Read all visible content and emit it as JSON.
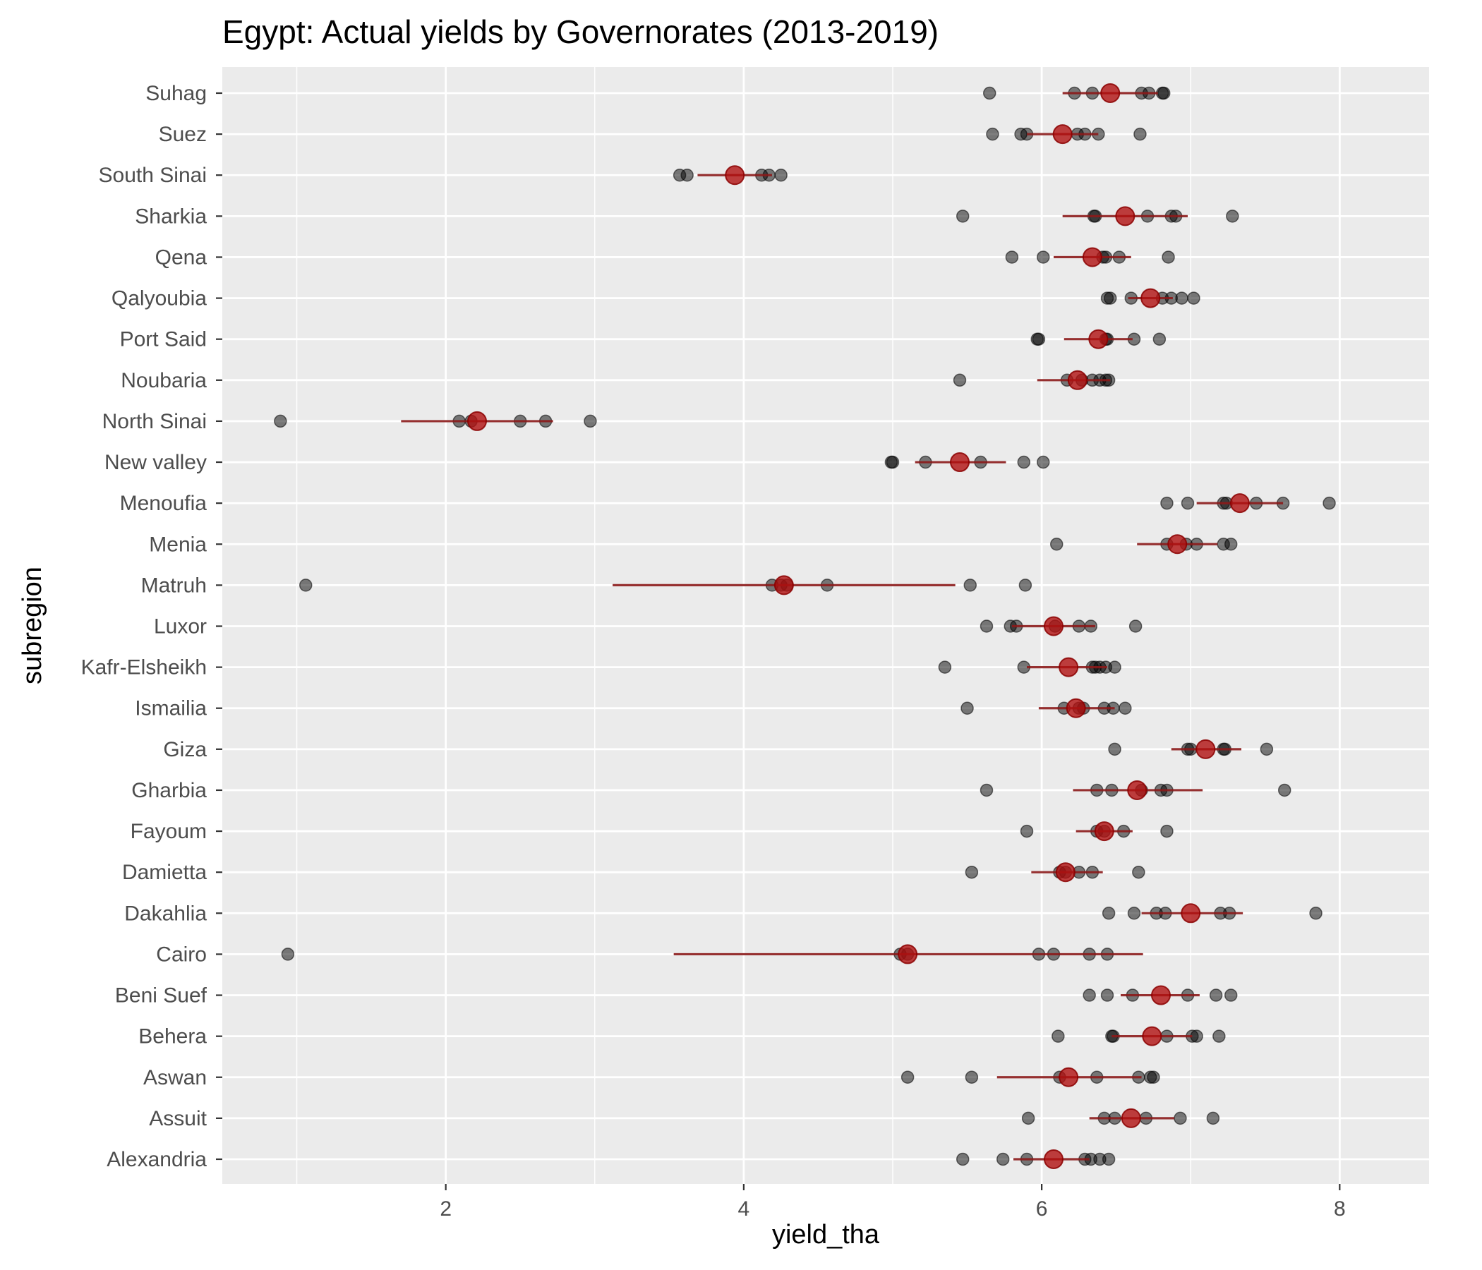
{
  "chart_data": {
    "type": "scatter",
    "title": "Egypt: Actual yields by Governorates (2013-2019)",
    "xlabel": "yield_tha",
    "ylabel": "subregion",
    "xlim": [
      0.5,
      8.6
    ],
    "xticks": [
      2,
      4,
      6,
      8
    ],
    "grid": true,
    "colors": {
      "points": "#000000",
      "mean": "#b01010",
      "range": "#8b1a1a",
      "panel": "#ebebeb",
      "grid": "#ffffff"
    },
    "categories": [
      "Suhag",
      "Suez",
      "South Sinai",
      "Sharkia",
      "Qena",
      "Qalyoubia",
      "Port Said",
      "Noubaria",
      "North Sinai",
      "New valley",
      "Menoufia",
      "Menia",
      "Matruh",
      "Luxor",
      "Kafr-Elsheikh",
      "Ismailia",
      "Giza",
      "Gharbia",
      "Fayoum",
      "Damietta",
      "Dakahlia",
      "Cairo",
      "Beni Suef",
      "Behera",
      "Aswan",
      "Assuit",
      "Alexandria"
    ],
    "series": [
      {
        "region": "Suhag",
        "values": [
          5.65,
          6.22,
          6.34,
          6.67,
          6.72,
          6.81,
          6.82
        ],
        "mean": 6.46,
        "lo": 6.14,
        "hi": 6.78
      },
      {
        "region": "Suez",
        "values": [
          5.67,
          5.86,
          5.9,
          6.24,
          6.29,
          6.38,
          6.66
        ],
        "mean": 6.14,
        "lo": 5.9,
        "hi": 6.38
      },
      {
        "region": "South Sinai",
        "values": [
          3.57,
          3.62,
          4.12,
          4.17,
          4.25
        ],
        "mean": 3.94,
        "lo": 3.69,
        "hi": 4.19
      },
      {
        "region": "Sharkia",
        "values": [
          5.47,
          6.35,
          6.36,
          6.71,
          6.87,
          6.9,
          7.28
        ],
        "mean": 6.56,
        "lo": 6.14,
        "hi": 6.98
      },
      {
        "region": "Qena",
        "values": [
          5.8,
          6.01,
          6.41,
          6.43,
          6.52,
          6.85
        ],
        "mean": 6.34,
        "lo": 6.08,
        "hi": 6.6
      },
      {
        "region": "Qalyoubia",
        "values": [
          6.44,
          6.46,
          6.6,
          6.81,
          6.87,
          6.94,
          7.02
        ],
        "mean": 6.73,
        "lo": 6.58,
        "hi": 6.88
      },
      {
        "region": "Port Said",
        "values": [
          5.97,
          5.98,
          6.43,
          6.44,
          6.62,
          6.79
        ],
        "mean": 6.38,
        "lo": 6.15,
        "hi": 6.61
      },
      {
        "region": "Noubaria",
        "values": [
          5.45,
          6.17,
          6.27,
          6.34,
          6.39,
          6.43,
          6.45
        ],
        "mean": 6.24,
        "lo": 5.97,
        "hi": 6.46
      },
      {
        "region": "North Sinai",
        "values": [
          0.89,
          2.09,
          2.17,
          2.5,
          2.67,
          2.97
        ],
        "mean": 2.21,
        "lo": 1.7,
        "hi": 2.72
      },
      {
        "region": "New valley",
        "values": [
          4.99,
          5.0,
          5.22,
          5.59,
          5.88,
          6.01
        ],
        "mean": 5.45,
        "lo": 5.15,
        "hi": 5.76
      },
      {
        "region": "Menoufia",
        "values": [
          6.84,
          6.98,
          7.22,
          7.24,
          7.44,
          7.62,
          7.93
        ],
        "mean": 7.33,
        "lo": 7.04,
        "hi": 7.62
      },
      {
        "region": "Menia",
        "values": [
          6.1,
          6.84,
          6.97,
          7.04,
          7.22,
          7.27
        ],
        "mean": 6.91,
        "lo": 6.64,
        "hi": 7.18
      },
      {
        "region": "Matruh",
        "values": [
          1.06,
          4.19,
          4.25,
          4.29,
          4.56,
          5.52,
          5.89
        ],
        "mean": 4.27,
        "lo": 3.12,
        "hi": 5.42
      },
      {
        "region": "Luxor",
        "values": [
          5.63,
          5.79,
          5.83,
          6.09,
          6.25,
          6.33,
          6.63
        ],
        "mean": 6.08,
        "lo": 5.8,
        "hi": 6.36
      },
      {
        "region": "Kafr-Elsheikh",
        "values": [
          5.35,
          5.88,
          6.34,
          6.36,
          6.39,
          6.43,
          6.49
        ],
        "mean": 6.18,
        "lo": 5.9,
        "hi": 6.44
      },
      {
        "region": "Ismailia",
        "values": [
          5.5,
          6.15,
          6.25,
          6.28,
          6.42,
          6.48,
          6.56
        ],
        "mean": 6.23,
        "lo": 5.98,
        "hi": 6.49
      },
      {
        "region": "Giza",
        "values": [
          6.49,
          6.98,
          7.0,
          7.22,
          7.23,
          7.51
        ],
        "mean": 7.1,
        "lo": 6.87,
        "hi": 7.34
      },
      {
        "region": "Gharbia",
        "values": [
          5.63,
          6.37,
          6.47,
          6.67,
          6.8,
          6.84,
          7.63
        ],
        "mean": 6.64,
        "lo": 6.21,
        "hi": 7.08
      },
      {
        "region": "Fayoum",
        "values": [
          5.9,
          6.37,
          6.42,
          6.55,
          6.84
        ],
        "mean": 6.42,
        "lo": 6.23,
        "hi": 6.61
      },
      {
        "region": "Damietta",
        "values": [
          5.53,
          6.12,
          6.16,
          6.25,
          6.34,
          6.65
        ],
        "mean": 6.16,
        "lo": 5.93,
        "hi": 6.41
      },
      {
        "region": "Dakahlia",
        "values": [
          6.45,
          6.62,
          6.77,
          6.83,
          7.2,
          7.26,
          7.84
        ],
        "mean": 7.0,
        "lo": 6.67,
        "hi": 7.35
      },
      {
        "region": "Cairo",
        "values": [
          0.94,
          5.05,
          5.1,
          5.98,
          6.08,
          6.32,
          6.44
        ],
        "mean": 5.1,
        "lo": 3.53,
        "hi": 6.68
      },
      {
        "region": "Beni Suef",
        "values": [
          6.32,
          6.44,
          6.61,
          6.98,
          7.17,
          7.27
        ],
        "mean": 6.8,
        "lo": 6.53,
        "hi": 7.06
      },
      {
        "region": "Behera",
        "values": [
          6.11,
          6.47,
          6.48,
          6.84,
          7.01,
          7.04,
          7.19
        ],
        "mean": 6.74,
        "lo": 6.47,
        "hi": 7.01
      },
      {
        "region": "Aswan",
        "values": [
          5.1,
          5.53,
          6.12,
          6.37,
          6.65,
          6.73,
          6.75
        ],
        "mean": 6.18,
        "lo": 5.7,
        "hi": 6.67
      },
      {
        "region": "Assuit",
        "values": [
          5.91,
          6.42,
          6.49,
          6.7,
          6.93,
          7.15
        ],
        "mean": 6.6,
        "lo": 6.32,
        "hi": 6.89
      },
      {
        "region": "Alexandria",
        "values": [
          5.47,
          5.74,
          5.9,
          6.29,
          6.33,
          6.39,
          6.45
        ],
        "mean": 6.08,
        "lo": 5.81,
        "hi": 6.32
      }
    ]
  }
}
